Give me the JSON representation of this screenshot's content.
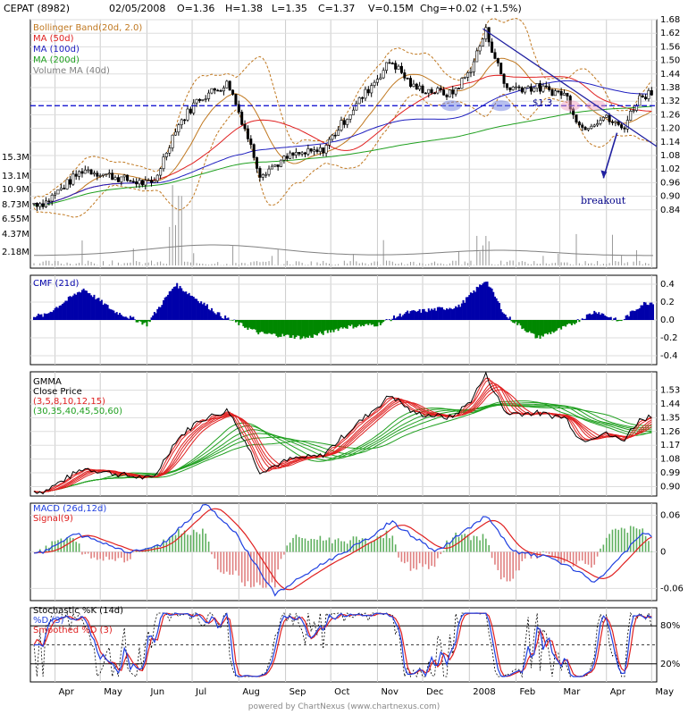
{
  "header": {
    "symbol": "CEPAT (8982)",
    "date": "02/05/2008",
    "open": "O=1.36",
    "high": "H=1.38",
    "low": "L=1.35",
    "close": "C=1.37",
    "volume": "V=0.15M",
    "change": "Chg=+0.02 (+1.5%)"
  },
  "colors": {
    "bollinger": "#c07820",
    "ma50": "#e02020",
    "ma100": "#2020c0",
    "ma200": "#20a020",
    "volume_ma": "#808080",
    "cmf_pos": "#0000aa",
    "cmf_neg": "#008800",
    "macd": "#2040e0",
    "signal": "#e02020",
    "annotation": "#000088"
  },
  "footer": "powered by ChartNexus (www.chartnexus.com)",
  "chart_data": [
    {
      "id": "price",
      "type": "candlestick",
      "legend": [
        "Bollinger Band(20d, 2.0)",
        "MA (50d)",
        "MA (100d)",
        "MA (200d)",
        "Volume MA (40d)"
      ],
      "y_ticks": [
        "1.68",
        "1.62",
        "1.56",
        "1.50",
        "1.44",
        "1.38",
        "1.32",
        "1.26",
        "1.20",
        "1.14",
        "1.08",
        "1.02",
        "0.96",
        "0.90",
        "0.84"
      ],
      "volume_ticks": [
        "15.3M",
        "13.1M",
        "10.9M",
        "8.73M",
        "6.55M",
        "4.37M",
        "2.18M"
      ],
      "ylim": [
        0.78,
        1.68
      ],
      "support_level": 1.3,
      "annotations": [
        "$1.3",
        "breakout"
      ],
      "close_keypoints": [
        {
          "x": "2007-03-25",
          "y": 0.87
        },
        {
          "x": "2007-04-20",
          "y": 1.02
        },
        {
          "x": "2007-05-20",
          "y": 0.97
        },
        {
          "x": "2007-06-05",
          "y": 0.95
        },
        {
          "x": "2007-06-20",
          "y": 1.2
        },
        {
          "x": "2007-07-05",
          "y": 1.33
        },
        {
          "x": "2007-07-25",
          "y": 1.4
        },
        {
          "x": "2007-08-05",
          "y": 1.2
        },
        {
          "x": "2007-08-15",
          "y": 1.0
        },
        {
          "x": "2007-09-05",
          "y": 1.08
        },
        {
          "x": "2007-09-25",
          "y": 1.1
        },
        {
          "x": "2007-10-15",
          "y": 1.28
        },
        {
          "x": "2007-11-10",
          "y": 1.5
        },
        {
          "x": "2007-11-25",
          "y": 1.38
        },
        {
          "x": "2007-12-20",
          "y": 1.35
        },
        {
          "x": "2008-01-01",
          "y": 1.45
        },
        {
          "x": "2008-01-12",
          "y": 1.63
        },
        {
          "x": "2008-01-25",
          "y": 1.38
        },
        {
          "x": "2008-02-15",
          "y": 1.38
        },
        {
          "x": "2008-03-05",
          "y": 1.35
        },
        {
          "x": "2008-03-15",
          "y": 1.2
        },
        {
          "x": "2008-03-30",
          "y": 1.25
        },
        {
          "x": "2008-04-12",
          "y": 1.2
        },
        {
          "x": "2008-04-22",
          "y": 1.33
        },
        {
          "x": "2008-05-02",
          "y": 1.37
        }
      ]
    },
    {
      "id": "cmf",
      "type": "area",
      "legend": [
        "CMF (21d)"
      ],
      "y_ticks": [
        "0.4",
        "0.2",
        "0.0",
        "-0.2",
        "-0.4"
      ],
      "ylim": [
        -0.5,
        0.5
      ],
      "keypoints": [
        {
          "x": "2007-03-25",
          "y": 0.05
        },
        {
          "x": "2007-04-20",
          "y": 0.35
        },
        {
          "x": "2007-05-10",
          "y": 0.1
        },
        {
          "x": "2007-06-01",
          "y": -0.05
        },
        {
          "x": "2007-06-20",
          "y": 0.4
        },
        {
          "x": "2007-07-20",
          "y": 0.05
        },
        {
          "x": "2007-08-15",
          "y": -0.15
        },
        {
          "x": "2007-09-15",
          "y": -0.2
        },
        {
          "x": "2007-10-10",
          "y": -0.08
        },
        {
          "x": "2007-11-01",
          "y": -0.05
        },
        {
          "x": "2007-11-20",
          "y": 0.08
        },
        {
          "x": "2007-12-25",
          "y": 0.15
        },
        {
          "x": "2008-01-12",
          "y": 0.45
        },
        {
          "x": "2008-01-25",
          "y": 0.05
        },
        {
          "x": "2008-02-15",
          "y": -0.2
        },
        {
          "x": "2008-03-05",
          "y": -0.08
        },
        {
          "x": "2008-03-25",
          "y": 0.1
        },
        {
          "x": "2008-04-10",
          "y": -0.02
        },
        {
          "x": "2008-04-25",
          "y": 0.18
        },
        {
          "x": "2008-05-02",
          "y": 0.2
        }
      ]
    },
    {
      "id": "gmma",
      "type": "line",
      "legend": [
        "GMMA",
        "Close Price",
        "(3,5,8,10,12,15)",
        "(30,35,40,45,50,60)"
      ],
      "y_ticks": [
        "1.53",
        "1.44",
        "1.35",
        "1.26",
        "1.17",
        "1.08",
        "0.99",
        "0.90"
      ],
      "ylim": [
        0.85,
        1.58
      ]
    },
    {
      "id": "macd",
      "type": "line",
      "legend": [
        "MACD (26d,12d)",
        "Signal(9)"
      ],
      "y_ticks": [
        "0.06",
        "0",
        "-0.06"
      ],
      "ylim": [
        -0.08,
        0.08
      ],
      "macd_keypoints": [
        {
          "x": "2007-03-25",
          "y": 0.0
        },
        {
          "x": "2007-04-15",
          "y": 0.03
        },
        {
          "x": "2007-05-20",
          "y": 0.0
        },
        {
          "x": "2007-06-10",
          "y": 0.01
        },
        {
          "x": "2007-07-10",
          "y": 0.08
        },
        {
          "x": "2007-07-30",
          "y": 0.03
        },
        {
          "x": "2007-08-25",
          "y": -0.07
        },
        {
          "x": "2007-09-25",
          "y": -0.02
        },
        {
          "x": "2007-10-25",
          "y": 0.02
        },
        {
          "x": "2007-11-10",
          "y": 0.05
        },
        {
          "x": "2007-12-10",
          "y": 0.0
        },
        {
          "x": "2008-01-12",
          "y": 0.06
        },
        {
          "x": "2008-01-30",
          "y": 0.0
        },
        {
          "x": "2008-02-25",
          "y": -0.01
        },
        {
          "x": "2008-03-25",
          "y": -0.05
        },
        {
          "x": "2008-04-25",
          "y": 0.03
        },
        {
          "x": "2008-05-02",
          "y": 0.025
        }
      ]
    },
    {
      "id": "stochastic",
      "type": "line",
      "legend": [
        "Stochastic %K (14d)",
        "%D (3)",
        "Smoothed %D (3)"
      ],
      "y_ticks": [
        "80%",
        "20%"
      ],
      "levels": [
        80,
        50,
        20
      ],
      "ylim": [
        0,
        100
      ]
    }
  ],
  "x_axis": {
    "months": [
      "Apr",
      "May",
      "Jun",
      "Jul",
      "Aug",
      "Sep",
      "Oct",
      "Nov",
      "Dec",
      "2008",
      "Feb",
      "Mar",
      "Apr",
      "May"
    ],
    "range": [
      "2007-03-18",
      "2008-05-02"
    ]
  }
}
